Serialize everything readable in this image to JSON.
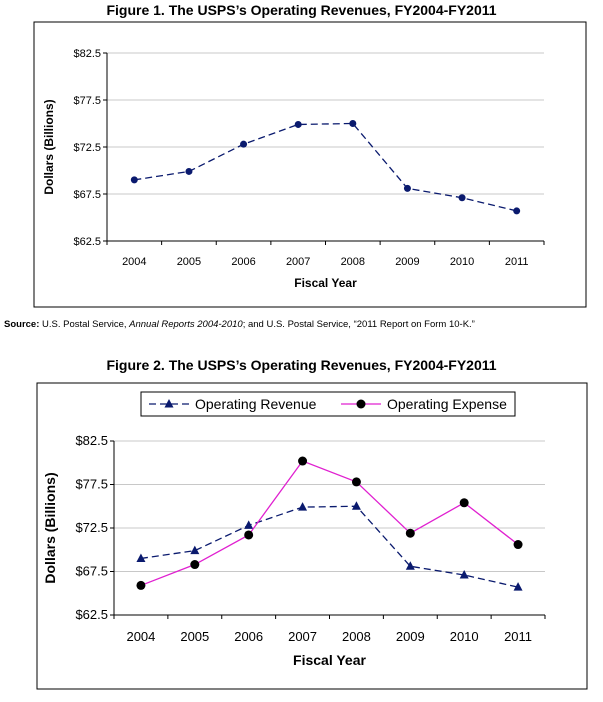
{
  "chart_data": [
    {
      "type": "line",
      "title": "Figure 1. The USPS’s Operating Revenues, FY2004-FY2011",
      "xlabel": "Fiscal Year",
      "ylabel": "Dollars (Billions)",
      "categories": [
        "2004",
        "2005",
        "2006",
        "2007",
        "2008",
        "2009",
        "2010",
        "2011"
      ],
      "ylim": [
        62.5,
        82.5
      ],
      "yticks": [
        62.5,
        67.5,
        72.5,
        77.5,
        82.5
      ],
      "ytick_labels": [
        "$62.5",
        "$67.5",
        "$72.5",
        "$77.5",
        "$82.5"
      ],
      "grid": true,
      "series": [
        {
          "name": "Operating Revenue",
          "values": [
            69.0,
            69.9,
            72.8,
            74.9,
            75.0,
            68.1,
            67.1,
            65.7
          ],
          "color": "#0a1a6e"
        }
      ]
    },
    {
      "type": "line",
      "title": "Figure 2. The USPS’s Operating Revenues, FY2004-FY2011",
      "xlabel": "Fiscal Year",
      "ylabel": "Dollars (Billions)",
      "categories": [
        "2004",
        "2005",
        "2006",
        "2007",
        "2008",
        "2009",
        "2010",
        "2011"
      ],
      "ylim": [
        62.5,
        82.5
      ],
      "yticks": [
        62.5,
        67.5,
        72.5,
        77.5,
        82.5
      ],
      "ytick_labels": [
        "$62.5",
        "$67.5",
        "$72.5",
        "$77.5",
        "$82.5"
      ],
      "grid": true,
      "legend": "top",
      "series": [
        {
          "name": "Operating Revenue",
          "values": [
            69.0,
            69.9,
            72.8,
            74.9,
            75.0,
            68.1,
            67.1,
            65.7
          ],
          "color": "#0a1a6e"
        },
        {
          "name": "Operating Expense",
          "values": [
            65.9,
            68.3,
            71.7,
            80.2,
            77.8,
            71.9,
            75.4,
            70.6
          ],
          "color": "#e020d0"
        }
      ]
    }
  ],
  "source": {
    "label": "Source:",
    "text1": " U.S. Postal Service, ",
    "italic": "Annual Reports 2004-2010",
    "text2": "; and U.S. Postal Service, “2011 Report on Form 10-K.”"
  }
}
